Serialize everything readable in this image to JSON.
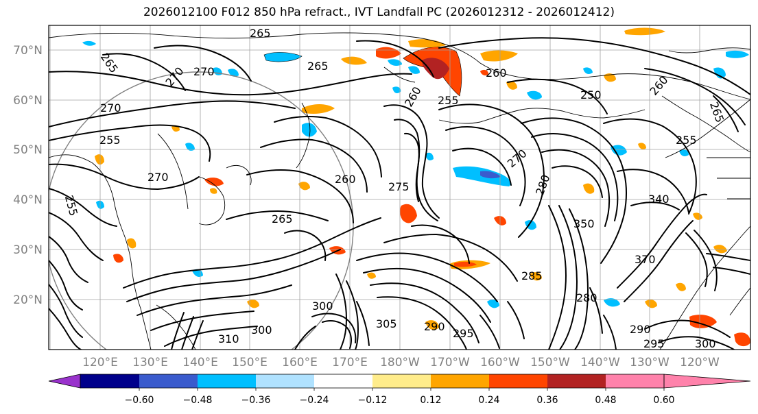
{
  "title": "2026012100 F012 850 hPa refract., IVT Landfall PC (2026012312 - 2026012412)",
  "map": {
    "lat_labels": [
      "70°N",
      "60°N",
      "50°N",
      "40°N",
      "30°N",
      "20°N"
    ],
    "lon_labels": [
      "120°E",
      "130°E",
      "140°E",
      "150°E",
      "160°E",
      "170°E",
      "180°W",
      "170°W",
      "160°W",
      "150°W",
      "140°W",
      "130°W",
      "120°W"
    ],
    "label_color": "#808080",
    "contour_color": "#000000",
    "coastline_color": "#000000",
    "grid_color": "#a0a0a0",
    "contour_labels": [
      "265",
      "265",
      "265",
      "265",
      "265",
      "270",
      "270",
      "270",
      "270",
      "270",
      "260",
      "260",
      "260",
      "260",
      "255",
      "255",
      "255",
      "255",
      "250",
      "275",
      "280",
      "280",
      "285",
      "290",
      "290",
      "295",
      "295",
      "300",
      "300",
      "300",
      "305",
      "310",
      "340",
      "350",
      "370"
    ]
  },
  "colorbar": {
    "tick_labels": [
      "−0.60",
      "−0.48",
      "−0.36",
      "−0.24",
      "−0.12",
      "0.12",
      "0.24",
      "0.36",
      "0.48",
      "0.60"
    ],
    "colors": [
      "#9932cc",
      "#00008b",
      "#3a5bcd",
      "#00bfff",
      "#b0e2ff",
      "#ffffff",
      "#ffec8b",
      "#ffa500",
      "#ff4500",
      "#b22222",
      "#ff82ab"
    ]
  }
}
